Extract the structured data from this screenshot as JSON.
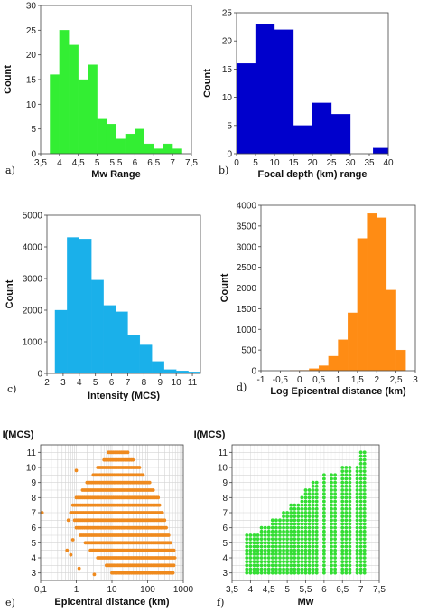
{
  "chart_data": [
    {
      "panel": "a)",
      "type": "bar",
      "color": "#33ee33",
      "xlabel": "Mw Range",
      "ylabel": "Count",
      "xlim": [
        3.5,
        7.5
      ],
      "ylim": [
        0,
        30
      ],
      "xticks": [
        3.5,
        4,
        4.5,
        5,
        5.5,
        6,
        6.5,
        7,
        7.5
      ],
      "xtick_labels": [
        "3,5",
        "4",
        "4,5",
        "5",
        "5,5",
        "6",
        "6,5",
        "7",
        "7,5"
      ],
      "yticks": [
        0,
        5,
        10,
        15,
        20,
        25,
        30
      ],
      "bin_width": 0.25,
      "bins": [
        3.75,
        4.0,
        4.25,
        4.5,
        4.75,
        5.0,
        5.25,
        5.5,
        5.75,
        6.0,
        6.25,
        6.5,
        6.75,
        7.0
      ],
      "values": [
        16,
        25,
        22,
        15,
        18,
        7,
        6,
        3,
        4,
        5,
        2,
        1,
        2,
        1
      ]
    },
    {
      "panel": "b)",
      "type": "bar",
      "color": "#0000cc",
      "xlabel": "Focal depth (km) range",
      "ylabel": "Count",
      "xlim": [
        0,
        40
      ],
      "ylim": [
        0,
        25
      ],
      "xticks": [
        0,
        5,
        10,
        15,
        20,
        25,
        30,
        35,
        40
      ],
      "xtick_labels": [
        "0",
        "5",
        "10",
        "15",
        "20",
        "25",
        "30",
        "35",
        "40"
      ],
      "yticks": [
        0,
        5,
        10,
        15,
        20,
        25
      ],
      "bin_width": 5,
      "bins": [
        0,
        5,
        10,
        15,
        20,
        25,
        30,
        35
      ],
      "values": [
        16,
        23,
        22,
        5,
        9,
        7,
        0,
        1
      ],
      "bar_overrides": [
        {
          "index": 7,
          "start": 36,
          "width": 4
        }
      ]
    },
    {
      "panel": "c)",
      "type": "bar",
      "color": "#1ab0ea",
      "xlabel": "Intensity (MCS)",
      "ylabel": "Count",
      "xlim": [
        2,
        11.5
      ],
      "ylim": [
        0,
        5000
      ],
      "xticks": [
        2,
        3,
        4,
        5,
        6,
        7,
        8,
        9,
        10,
        11
      ],
      "xtick_labels": [
        "2",
        "3",
        "4",
        "5",
        "6",
        "7",
        "8",
        "9",
        "10",
        "11"
      ],
      "yticks": [
        0,
        1000,
        2000,
        3000,
        4000,
        5000
      ],
      "bin_width": 0.75,
      "bins": [
        2.5,
        3.25,
        4.0,
        4.75,
        5.5,
        6.25,
        7.0,
        7.75,
        8.5,
        9.25,
        10.0,
        10.75
      ],
      "values": [
        2000,
        4300,
        4250,
        2950,
        2150,
        1950,
        1200,
        900,
        380,
        120,
        80,
        50
      ]
    },
    {
      "panel": "d)",
      "type": "bar",
      "color": "#ff8c14",
      "xlabel": "Log Epicentral distance (km)",
      "ylabel": "Count",
      "xlim": [
        -1,
        3
      ],
      "ylim": [
        0,
        4000
      ],
      "xticks": [
        -1,
        -0.5,
        0,
        0.5,
        1,
        1.5,
        2,
        2.5,
        3
      ],
      "xtick_labels": [
        "-1",
        "-0,5",
        "0",
        "0,5",
        "1",
        "1,5",
        "2",
        "2,5",
        "3"
      ],
      "yticks": [
        0,
        500,
        1000,
        1500,
        2000,
        2500,
        3000,
        3500,
        4000
      ],
      "bin_width": 0.25,
      "bins": [
        -0.25,
        0,
        0.25,
        0.5,
        0.75,
        1.0,
        1.25,
        1.5,
        1.75,
        2.0,
        2.25,
        2.5
      ],
      "values": [
        5,
        10,
        50,
        120,
        350,
        750,
        1400,
        3200,
        3800,
        3700,
        1950,
        500
      ]
    },
    {
      "panel": "e)",
      "type": "scatter",
      "color": "#ef8a1e",
      "xlabel": "Epicentral distance (km)",
      "ylabel": "I(MCS)",
      "xscale": "log",
      "xlim": [
        0.1,
        1000
      ],
      "ylim": [
        2.5,
        11.5
      ],
      "xticks": [
        0.1,
        1,
        10,
        100,
        1000
      ],
      "xtick_labels": [
        "0,1",
        "1",
        "10",
        "100",
        "1000"
      ],
      "yticks": [
        3,
        4,
        5,
        6,
        7,
        8,
        9,
        10,
        11
      ],
      "grid": true,
      "points_by_intensity": [
        {
          "i": 3,
          "x_min": 10,
          "x_max": 520
        },
        {
          "i": 3.5,
          "x_min": 7,
          "x_max": 580
        },
        {
          "i": 4,
          "x_min": 4,
          "x_max": 620
        },
        {
          "i": 4.5,
          "x_min": 2.5,
          "x_max": 560
        },
        {
          "i": 5,
          "x_min": 1.8,
          "x_max": 480
        },
        {
          "i": 5.5,
          "x_min": 1.3,
          "x_max": 420
        },
        {
          "i": 6,
          "x_min": 1.0,
          "x_max": 360
        },
        {
          "i": 6.5,
          "x_min": 0.9,
          "x_max": 300
        },
        {
          "i": 7,
          "x_min": 0.7,
          "x_max": 260
        },
        {
          "i": 7.5,
          "x_min": 0.8,
          "x_max": 230
        },
        {
          "i": 8,
          "x_min": 1.0,
          "x_max": 200
        },
        {
          "i": 8.5,
          "x_min": 1.5,
          "x_max": 150
        },
        {
          "i": 9,
          "x_min": 2.0,
          "x_max": 120
        },
        {
          "i": 9.5,
          "x_min": 3.0,
          "x_max": 80
        },
        {
          "i": 10,
          "x_min": 4.0,
          "x_max": 60
        },
        {
          "i": 10.5,
          "x_min": 6.0,
          "x_max": 40
        },
        {
          "i": 11,
          "x_min": 8.0,
          "x_max": 30
        }
      ],
      "extra_points": [
        [
          0.11,
          7
        ],
        [
          0.6,
          6.5
        ],
        [
          0.55,
          4.5
        ],
        [
          0.7,
          4.2
        ],
        [
          1.2,
          3.3
        ],
        [
          1.0,
          9.8
        ],
        [
          3.2,
          2.9
        ],
        [
          0.8,
          5.2
        ]
      ]
    },
    {
      "panel": "f)",
      "type": "scatter",
      "color": "#33dd33",
      "xlabel": "Mw",
      "ylabel": "I(MCS)",
      "xlim": [
        3.5,
        7.5
      ],
      "ylim": [
        2.5,
        11.5
      ],
      "xticks": [
        3.5,
        4,
        4.5,
        5,
        5.5,
        6,
        6.5,
        7,
        7.5
      ],
      "xtick_labels": [
        "3,5",
        "4",
        "4,5",
        "5",
        "5,5",
        "6",
        "6,5",
        "7",
        "7,5"
      ],
      "yticks": [
        3,
        4,
        5,
        6,
        7,
        8,
        9,
        10,
        11
      ],
      "grid": true,
      "columns": [
        {
          "mw": 3.9,
          "i_min": 3,
          "i_max": 5.5
        },
        {
          "mw": 4.0,
          "i_min": 3,
          "i_max": 5.5
        },
        {
          "mw": 4.1,
          "i_min": 3,
          "i_max": 5.5
        },
        {
          "mw": 4.2,
          "i_min": 3,
          "i_max": 5.5
        },
        {
          "mw": 4.3,
          "i_min": 3,
          "i_max": 6
        },
        {
          "mw": 4.4,
          "i_min": 3,
          "i_max": 6
        },
        {
          "mw": 4.5,
          "i_min": 3,
          "i_max": 6
        },
        {
          "mw": 4.6,
          "i_min": 3,
          "i_max": 6.5
        },
        {
          "mw": 4.7,
          "i_min": 3,
          "i_max": 6.5
        },
        {
          "mw": 4.8,
          "i_min": 3,
          "i_max": 6.5
        },
        {
          "mw": 4.9,
          "i_min": 3,
          "i_max": 7
        },
        {
          "mw": 5.0,
          "i_min": 3,
          "i_max": 7
        },
        {
          "mw": 5.1,
          "i_min": 3,
          "i_max": 7.5
        },
        {
          "mw": 5.2,
          "i_min": 3,
          "i_max": 7.5
        },
        {
          "mw": 5.3,
          "i_min": 3,
          "i_max": 7.5
        },
        {
          "mw": 5.4,
          "i_min": 3,
          "i_max": 8
        },
        {
          "mw": 5.5,
          "i_min": 3,
          "i_max": 8.5
        },
        {
          "mw": 5.6,
          "i_min": 3,
          "i_max": 8.5
        },
        {
          "mw": 5.7,
          "i_min": 3,
          "i_max": 9
        },
        {
          "mw": 5.8,
          "i_min": 3,
          "i_max": 9
        },
        {
          "mw": 6.0,
          "i_min": 3,
          "i_max": 9.5
        },
        {
          "mw": 6.2,
          "i_min": 3,
          "i_max": 9.5
        },
        {
          "mw": 6.3,
          "i_min": 3,
          "i_max": 9.5
        },
        {
          "mw": 6.5,
          "i_min": 3,
          "i_max": 10
        },
        {
          "mw": 6.6,
          "i_min": 3,
          "i_max": 10
        },
        {
          "mw": 6.7,
          "i_min": 3,
          "i_max": 10
        },
        {
          "mw": 6.9,
          "i_min": 3,
          "i_max": 10
        },
        {
          "mw": 7.0,
          "i_min": 3,
          "i_max": 11
        },
        {
          "mw": 7.1,
          "i_min": 3,
          "i_max": 11
        }
      ]
    }
  ]
}
